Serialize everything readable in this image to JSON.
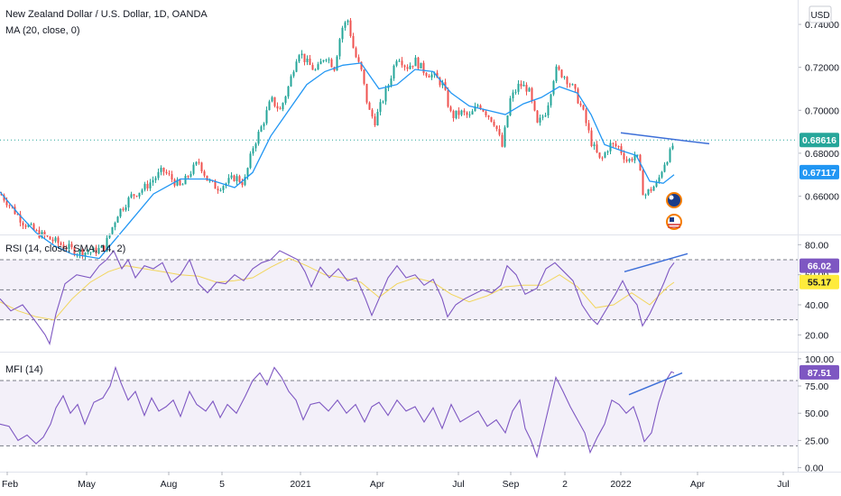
{
  "header": {
    "title": "New Zealand Dollar / U.S. Dollar, 1D, OANDA",
    "ma_label": "MA (20, close, 0)",
    "currency": "USD"
  },
  "rsi_panel": {
    "label": "RSI (14, close, SMA, 14, 2)"
  },
  "mfi_panel": {
    "label": "MFI (14)"
  },
  "colors": {
    "up": "#26a69a",
    "down": "#ef5350",
    "ma": "#2196f3",
    "rsi": "#7e57c2",
    "rsi_ma": "#f2d55b",
    "trendline": "#3d6fd8",
    "price_badge": "#26a69a",
    "ma_badge": "#2196f3",
    "rsi_badge": "#7e57c2",
    "rsi_ma_badge": "#ffeb3b",
    "band_fill": "#7e57c2"
  },
  "chart_data": [
    {
      "type": "candlestick",
      "title": "New Zealand Dollar / U.S. Dollar, 1D, OANDA",
      "ylim": [
        0.643,
        0.748
      ],
      "yticks": [
        0.74,
        0.72,
        0.7,
        0.68,
        0.66
      ],
      "ytick_labels": [
        "0.74000",
        "0.72000",
        "0.70000",
        "0.68000",
        "0.66000"
      ],
      "x_labels": [
        "Feb",
        "May",
        "Aug",
        "5",
        "2021",
        "Apr",
        "Jul",
        "Sep",
        "2",
        "2022",
        "Apr",
        "Jul"
      ],
      "price_path": [
        [
          0,
          0.661
        ],
        [
          10,
          0.656
        ],
        [
          25,
          0.648
        ],
        [
          40,
          0.643
        ],
        [
          55,
          0.64
        ],
        [
          70,
          0.637
        ],
        [
          85,
          0.634
        ],
        [
          100,
          0.634
        ],
        [
          115,
          0.636
        ],
        [
          130,
          0.652
        ],
        [
          145,
          0.66
        ],
        [
          160,
          0.664
        ],
        [
          170,
          0.668
        ],
        [
          180,
          0.672
        ],
        [
          190,
          0.668
        ],
        [
          200,
          0.664
        ],
        [
          210,
          0.671
        ],
        [
          220,
          0.676
        ],
        [
          230,
          0.667
        ],
        [
          240,
          0.664
        ],
        [
          250,
          0.666
        ],
        [
          260,
          0.669
        ],
        [
          270,
          0.666
        ],
        [
          280,
          0.683
        ],
        [
          290,
          0.693
        ],
        [
          300,
          0.705
        ],
        [
          310,
          0.7
        ],
        [
          320,
          0.712
        ],
        [
          330,
          0.728
        ],
        [
          340,
          0.722
        ],
        [
          350,
          0.718
        ],
        [
          360,
          0.726
        ],
        [
          370,
          0.72
        ],
        [
          378,
          0.738
        ],
        [
          385,
          0.742
        ],
        [
          392,
          0.727
        ],
        [
          400,
          0.718
        ],
        [
          408,
          0.7
        ],
        [
          415,
          0.695
        ],
        [
          422,
          0.703
        ],
        [
          430,
          0.712
        ],
        [
          440,
          0.726
        ],
        [
          450,
          0.72
        ],
        [
          460,
          0.723
        ],
        [
          470,
          0.718
        ],
        [
          480,
          0.716
        ],
        [
          490,
          0.712
        ],
        [
          500,
          0.697
        ],
        [
          510,
          0.699
        ],
        [
          520,
          0.697
        ],
        [
          530,
          0.703
        ],
        [
          540,
          0.698
        ],
        [
          548,
          0.694
        ],
        [
          556,
          0.683
        ],
        [
          565,
          0.705
        ],
        [
          575,
          0.712
        ],
        [
          585,
          0.71
        ],
        [
          595,
          0.693
        ],
        [
          605,
          0.7
        ],
        [
          615,
          0.719
        ],
        [
          625,
          0.716
        ],
        [
          635,
          0.71
        ],
        [
          645,
          0.7
        ],
        [
          655,
          0.685
        ],
        [
          665,
          0.676
        ],
        [
          675,
          0.684
        ],
        [
          685,
          0.683
        ],
        [
          695,
          0.676
        ],
        [
          705,
          0.68
        ],
        [
          713,
          0.66
        ],
        [
          720,
          0.663
        ],
        [
          728,
          0.666
        ],
        [
          735,
          0.675
        ],
        [
          742,
          0.68
        ],
        [
          747,
          0.686
        ]
      ],
      "ma_path": [
        [
          0,
          0.662
        ],
        [
          20,
          0.652
        ],
        [
          40,
          0.643
        ],
        [
          60,
          0.637
        ],
        [
          80,
          0.633
        ],
        [
          110,
          0.631
        ],
        [
          140,
          0.646
        ],
        [
          170,
          0.661
        ],
        [
          200,
          0.668
        ],
        [
          230,
          0.668
        ],
        [
          260,
          0.664
        ],
        [
          280,
          0.671
        ],
        [
          300,
          0.688
        ],
        [
          320,
          0.7
        ],
        [
          340,
          0.712
        ],
        [
          360,
          0.718
        ],
        [
          380,
          0.721
        ],
        [
          400,
          0.722
        ],
        [
          420,
          0.71
        ],
        [
          440,
          0.712
        ],
        [
          460,
          0.719
        ],
        [
          480,
          0.718
        ],
        [
          500,
          0.708
        ],
        [
          520,
          0.702
        ],
        [
          540,
          0.7
        ],
        [
          560,
          0.698
        ],
        [
          580,
          0.703
        ],
        [
          600,
          0.706
        ],
        [
          620,
          0.711
        ],
        [
          640,
          0.708
        ],
        [
          655,
          0.698
        ],
        [
          670,
          0.684
        ],
        [
          690,
          0.681
        ],
        [
          705,
          0.679
        ],
        [
          720,
          0.667
        ],
        [
          735,
          0.666
        ],
        [
          747,
          0.67
        ]
      ],
      "trendline": [
        [
          688,
          0.6895
        ],
        [
          786,
          0.6844
        ]
      ],
      "last_price": 0.68616,
      "last_price_label": "0.68616",
      "ma_value": 0.67117,
      "ma_value_label": "0.67117"
    },
    {
      "type": "line",
      "title": "RSI (14, close, SMA, 14, 2)",
      "ylim": [
        10,
        85
      ],
      "yticks": [
        80,
        60,
        40,
        20
      ],
      "ytick_labels": [
        "80.00",
        "60.00",
        "40.00",
        "20.00"
      ],
      "bands": [
        70,
        50,
        30
      ],
      "rsi_path": [
        [
          0,
          44
        ],
        [
          12,
          36
        ],
        [
          25,
          40
        ],
        [
          38,
          30
        ],
        [
          50,
          20
        ],
        [
          55,
          14
        ],
        [
          62,
          34
        ],
        [
          72,
          54
        ],
        [
          85,
          60
        ],
        [
          100,
          58
        ],
        [
          110,
          66
        ],
        [
          118,
          70
        ],
        [
          126,
          76
        ],
        [
          135,
          64
        ],
        [
          142,
          70
        ],
        [
          150,
          58
        ],
        [
          160,
          66
        ],
        [
          170,
          64
        ],
        [
          180,
          68
        ],
        [
          190,
          55
        ],
        [
          200,
          60
        ],
        [
          210,
          70
        ],
        [
          220,
          54
        ],
        [
          230,
          48
        ],
        [
          240,
          55
        ],
        [
          250,
          54
        ],
        [
          260,
          60
        ],
        [
          270,
          56
        ],
        [
          280,
          64
        ],
        [
          290,
          68
        ],
        [
          300,
          70
        ],
        [
          310,
          76
        ],
        [
          320,
          73
        ],
        [
          330,
          70
        ],
        [
          338,
          62
        ],
        [
          345,
          52
        ],
        [
          355,
          65
        ],
        [
          365,
          58
        ],
        [
          375,
          64
        ],
        [
          385,
          56
        ],
        [
          395,
          58
        ],
        [
          405,
          44
        ],
        [
          412,
          33
        ],
        [
          420,
          44
        ],
        [
          430,
          58
        ],
        [
          440,
          66
        ],
        [
          450,
          58
        ],
        [
          460,
          60
        ],
        [
          470,
          53
        ],
        [
          480,
          57
        ],
        [
          490,
          44
        ],
        [
          496,
          32
        ],
        [
          505,
          40
        ],
        [
          515,
          44
        ],
        [
          525,
          47
        ],
        [
          535,
          50
        ],
        [
          545,
          48
        ],
        [
          555,
          53
        ],
        [
          562,
          66
        ],
        [
          572,
          60
        ],
        [
          582,
          47
        ],
        [
          595,
          51
        ],
        [
          605,
          64
        ],
        [
          615,
          68
        ],
        [
          625,
          62
        ],
        [
          635,
          56
        ],
        [
          645,
          40
        ],
        [
          655,
          31
        ],
        [
          662,
          27
        ],
        [
          672,
          37
        ],
        [
          682,
          47
        ],
        [
          690,
          56
        ],
        [
          698,
          46
        ],
        [
          706,
          40
        ],
        [
          712,
          26
        ],
        [
          720,
          34
        ],
        [
          728,
          44
        ],
        [
          736,
          55
        ],
        [
          742,
          64
        ],
        [
          747,
          68
        ]
      ],
      "rsi_ma_path": [
        [
          0,
          42
        ],
        [
          20,
          36
        ],
        [
          40,
          32
        ],
        [
          60,
          30
        ],
        [
          80,
          44
        ],
        [
          100,
          55
        ],
        [
          120,
          62
        ],
        [
          140,
          66
        ],
        [
          160,
          64
        ],
        [
          180,
          62
        ],
        [
          200,
          60
        ],
        [
          220,
          59
        ],
        [
          240,
          55
        ],
        [
          260,
          56
        ],
        [
          280,
          58
        ],
        [
          300,
          65
        ],
        [
          320,
          71
        ],
        [
          340,
          66
        ],
        [
          360,
          60
        ],
        [
          380,
          58
        ],
        [
          400,
          55
        ],
        [
          420,
          45
        ],
        [
          440,
          54
        ],
        [
          460,
          58
        ],
        [
          480,
          55
        ],
        [
          500,
          47
        ],
        [
          520,
          42
        ],
        [
          540,
          46
        ],
        [
          560,
          52
        ],
        [
          580,
          53
        ],
        [
          600,
          53
        ],
        [
          620,
          60
        ],
        [
          640,
          52
        ],
        [
          660,
          38
        ],
        [
          680,
          40
        ],
        [
          700,
          48
        ],
        [
          720,
          40
        ],
        [
          740,
          52
        ],
        [
          747,
          55
        ]
      ],
      "trendline": [
        [
          692,
          62
        ],
        [
          762,
          74
        ]
      ],
      "rsi_value": 66.02,
      "rsi_value_label": "66.02",
      "rsi_ma_value": 55.17,
      "rsi_ma_value_label": "55.17"
    },
    {
      "type": "line",
      "title": "MFI (14)",
      "ylim": [
        -2,
        104
      ],
      "yticks": [
        100,
        75,
        50,
        25,
        0
      ],
      "ytick_labels": [
        "100.00",
        "75.00",
        "50.00",
        "25.00",
        "0.00"
      ],
      "bands": [
        80,
        20
      ],
      "mfi_path": [
        [
          0,
          40
        ],
        [
          10,
          38
        ],
        [
          20,
          25
        ],
        [
          30,
          30
        ],
        [
          40,
          22
        ],
        [
          48,
          28
        ],
        [
          56,
          40
        ],
        [
          62,
          55
        ],
        [
          70,
          66
        ],
        [
          78,
          50
        ],
        [
          86,
          58
        ],
        [
          94,
          40
        ],
        [
          104,
          60
        ],
        [
          114,
          64
        ],
        [
          122,
          75
        ],
        [
          128,
          92
        ],
        [
          134,
          78
        ],
        [
          142,
          62
        ],
        [
          150,
          70
        ],
        [
          160,
          48
        ],
        [
          168,
          64
        ],
        [
          176,
          52
        ],
        [
          184,
          56
        ],
        [
          192,
          62
        ],
        [
          200,
          47
        ],
        [
          210,
          70
        ],
        [
          218,
          58
        ],
        [
          228,
          52
        ],
        [
          236,
          61
        ],
        [
          244,
          46
        ],
        [
          252,
          58
        ],
        [
          262,
          50
        ],
        [
          272,
          66
        ],
        [
          280,
          80
        ],
        [
          288,
          87
        ],
        [
          296,
          76
        ],
        [
          304,
          92
        ],
        [
          312,
          83
        ],
        [
          320,
          70
        ],
        [
          328,
          62
        ],
        [
          336,
          44
        ],
        [
          344,
          58
        ],
        [
          354,
          60
        ],
        [
          364,
          52
        ],
        [
          374,
          62
        ],
        [
          384,
          50
        ],
        [
          394,
          58
        ],
        [
          404,
          42
        ],
        [
          412,
          56
        ],
        [
          420,
          60
        ],
        [
          430,
          48
        ],
        [
          440,
          62
        ],
        [
          450,
          52
        ],
        [
          460,
          56
        ],
        [
          470,
          42
        ],
        [
          480,
          55
        ],
        [
          490,
          36
        ],
        [
          500,
          58
        ],
        [
          510,
          42
        ],
        [
          520,
          47
        ],
        [
          530,
          52
        ],
        [
          540,
          38
        ],
        [
          550,
          44
        ],
        [
          560,
          32
        ],
        [
          568,
          52
        ],
        [
          576,
          62
        ],
        [
          582,
          36
        ],
        [
          588,
          26
        ],
        [
          595,
          10
        ],
        [
          602,
          34
        ],
        [
          610,
          62
        ],
        [
          616,
          83
        ],
        [
          624,
          70
        ],
        [
          632,
          56
        ],
        [
          640,
          44
        ],
        [
          648,
          32
        ],
        [
          654,
          14
        ],
        [
          662,
          28
        ],
        [
          670,
          40
        ],
        [
          678,
          62
        ],
        [
          686,
          58
        ],
        [
          694,
          50
        ],
        [
          702,
          56
        ],
        [
          708,
          42
        ],
        [
          714,
          24
        ],
        [
          722,
          32
        ],
        [
          730,
          60
        ],
        [
          738,
          80
        ],
        [
          744,
          88
        ],
        [
          747,
          87
        ]
      ],
      "trendline": [
        [
          697,
          67
        ],
        [
          756,
          87
        ]
      ],
      "mfi_value": 87.51,
      "mfi_value_label": "87.51"
    }
  ]
}
